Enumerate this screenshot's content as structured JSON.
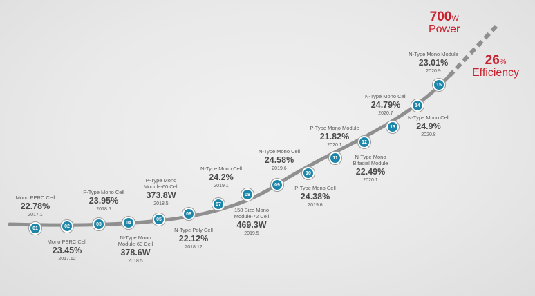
{
  "milestones": [
    {
      "num": "01",
      "name": "Mono PERC Cell",
      "value": "22.78%",
      "date": "2017.1"
    },
    {
      "num": "02",
      "name": "Mono PERC Cell",
      "value": "23.45%",
      "date": "2017.12"
    },
    {
      "num": "03",
      "name": "P-Type Mono Cell",
      "value": "23.95%",
      "date": "2018.5"
    },
    {
      "num": "04",
      "name": "N-Type Mono Module-60 Cell",
      "value": "378.6W",
      "date": "2018.5"
    },
    {
      "num": "05",
      "name": "P-Type Mono Module-60 Cell",
      "value": "373.8W",
      "date": "2018.5"
    },
    {
      "num": "06",
      "name": "N-Type Poly Cell",
      "value": "22.12%",
      "date": "2018.12"
    },
    {
      "num": "07",
      "name": "N-Type Mono Cell",
      "value": "24.2%",
      "date": "2019.1"
    },
    {
      "num": "08",
      "name": "158 Size Mono Module-72 Cell",
      "value": "469.3W",
      "date": "2019.5"
    },
    {
      "num": "09",
      "name": "N-Type Mono Cell",
      "value": "24.58%",
      "date": "2019.6"
    },
    {
      "num": "10",
      "name": "P-Type Mono Cell",
      "value": "24.38%",
      "date": "2019.6"
    },
    {
      "num": "11",
      "name": "P-Type Mono Module",
      "value": "21.82%",
      "date": "2020.1"
    },
    {
      "num": "12",
      "name": "N-Type Mono Bifacial Module",
      "value": "22.49%",
      "date": "2020.1"
    },
    {
      "num": "13",
      "name": "N-Type Mono Cell",
      "value": "24.79%",
      "date": "2020.7"
    },
    {
      "num": "14",
      "name": "N-Type Mono Cell",
      "value": "24.9%",
      "date": "2020.8"
    },
    {
      "num": "15",
      "name": "N-Type Mono Module",
      "value": "23.01%",
      "date": "2020.9"
    }
  ],
  "targets": {
    "power": {
      "value": "700",
      "unit": "W",
      "label": "Power"
    },
    "efficiency": {
      "value": "26",
      "unit": "%",
      "label": "Efficiency"
    }
  },
  "colors": {
    "node": "#1e87a9",
    "curve": "#8f8f8f",
    "target": "#c8202e"
  }
}
